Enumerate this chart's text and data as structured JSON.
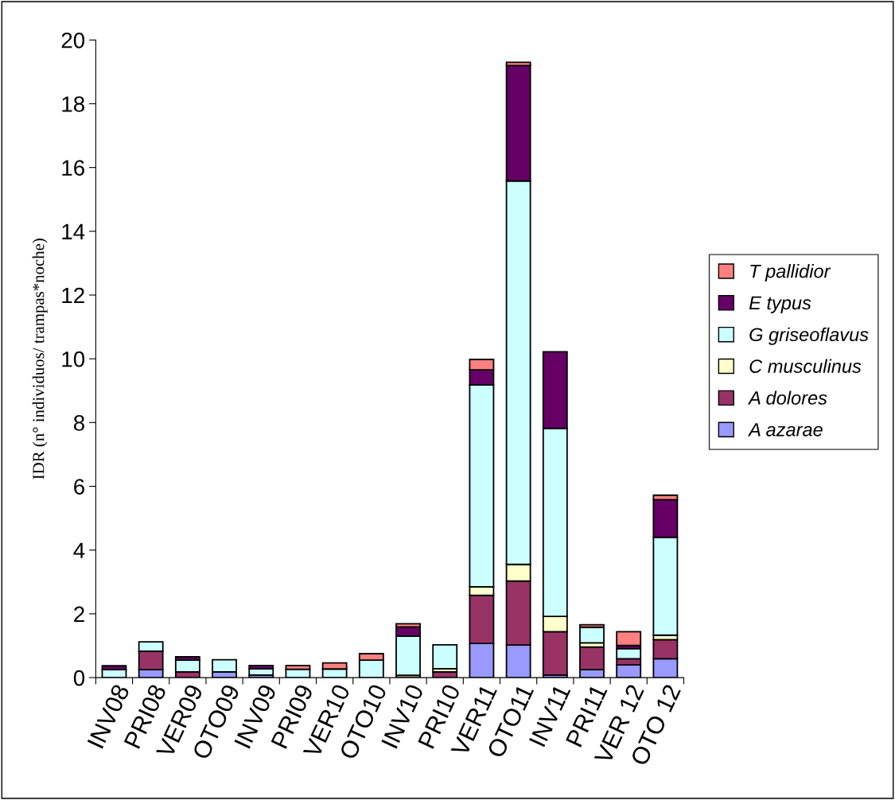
{
  "chart_data": {
    "type": "bar",
    "stacked": true,
    "ylabel": "IDR (n° individuos/ trampas*noche)",
    "categories": [
      "INV08",
      "PRI08",
      "VER09",
      "OTO09",
      "INV09",
      "PRI09",
      "VER10",
      "OTO10",
      "INV10",
      "PRI10",
      "VER11",
      "OTO11",
      "INV11",
      "PRI11",
      "VER 12",
      "OTO 12"
    ],
    "series": [
      {
        "name": "A azarae",
        "color": "#9999ff",
        "values": [
          null,
          0.25,
          null,
          0.18,
          0.08,
          null,
          null,
          null,
          null,
          null,
          1.07,
          1.02,
          0.08,
          0.25,
          0.4,
          0.59
        ]
      },
      {
        "name": "A dolores",
        "color": "#993366",
        "values": [
          null,
          0.58,
          0.18,
          null,
          null,
          null,
          null,
          null,
          null,
          0.18,
          1.51,
          2.01,
          1.36,
          0.71,
          0.19,
          0.6
        ]
      },
      {
        "name": "C musculinus",
        "color": "#ffffcc",
        "values": [
          null,
          null,
          null,
          null,
          null,
          null,
          null,
          null,
          0.07,
          0.1,
          0.27,
          0.52,
          0.48,
          0.13,
          null,
          0.14
        ]
      },
      {
        "name": "G griseoflavus",
        "color": "#ccffff",
        "values": [
          0.25,
          0.29,
          0.37,
          0.38,
          0.2,
          0.26,
          0.27,
          0.55,
          1.23,
          0.75,
          6.33,
          12.03,
          5.9,
          0.49,
          0.32,
          3.07
        ]
      },
      {
        "name": "E typus",
        "color": "#660066",
        "values": [
          0.12,
          null,
          0.1,
          null,
          0.1,
          null,
          null,
          null,
          0.29,
          null,
          0.47,
          3.62,
          2.4,
          null,
          0.1,
          1.18
        ]
      },
      {
        "name": "T pallidior",
        "color": "#ff8080",
        "values": [
          null,
          null,
          null,
          null,
          null,
          0.12,
          0.19,
          0.2,
          0.1,
          null,
          0.33,
          0.1,
          null,
          0.08,
          0.43,
          0.14
        ]
      }
    ],
    "ylim": [
      0,
      20
    ],
    "yticks": [
      0,
      2,
      4,
      6,
      8,
      10,
      12,
      14,
      16,
      18,
      20
    ],
    "grid": false,
    "legend": "right"
  }
}
